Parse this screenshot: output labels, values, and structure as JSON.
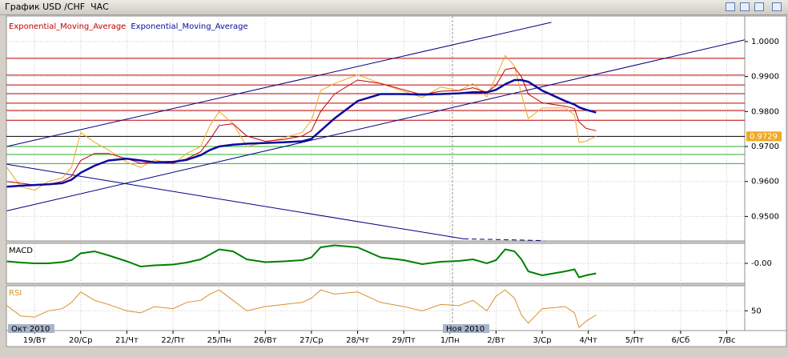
{
  "window": {
    "title": "График USD /CHF  ЧАС"
  },
  "time_scale": {
    "months": [
      "Окт 2010",
      "Ноя 2010"
    ]
  },
  "chart_data": [
    {
      "type": "line",
      "x": [
        -0.6,
        -0.3,
        0,
        0.3,
        0.6,
        0.8,
        1.0,
        1.3,
        1.6,
        2.0,
        2.3,
        2.6,
        3.0,
        3.3,
        3.6,
        3.8,
        4.0,
        4.3,
        4.6,
        5.0,
        5.4,
        5.8,
        6.0,
        6.2,
        6.5,
        7.0,
        7.5,
        8.0,
        8.4,
        8.8,
        9.2,
        9.5,
        9.8,
        10.0,
        10.2,
        10.4,
        10.55,
        10.7,
        11.0,
        11.5,
        11.7,
        11.8,
        11.95,
        12.17
      ],
      "series": [
        {
          "color": "#f0a820",
          "values": [
            0.964,
            0.9585,
            0.9575,
            0.96,
            0.961,
            0.964,
            0.974,
            0.9712,
            0.969,
            0.9655,
            0.964,
            0.9662,
            0.965,
            0.968,
            0.97,
            0.976,
            0.98,
            0.9765,
            0.97,
            0.9712,
            0.9725,
            0.974,
            0.9775,
            0.986,
            0.988,
            0.9905,
            0.988,
            0.9858,
            0.984,
            0.987,
            0.986,
            0.988,
            0.9842,
            0.99,
            0.996,
            0.993,
            0.985,
            0.978,
            0.981,
            0.981,
            0.979,
            0.9712,
            0.9715,
            0.9729
          ]
        },
        {
          "name": "Exponential_Moving_Average",
          "color": "#c00000",
          "values": [
            0.96,
            0.9595,
            0.959,
            0.9592,
            0.96,
            0.9615,
            0.966,
            0.968,
            0.968,
            0.9665,
            0.9652,
            0.9655,
            0.9652,
            0.9665,
            0.9685,
            0.972,
            0.976,
            0.9765,
            0.973,
            0.9715,
            0.972,
            0.973,
            0.9745,
            0.98,
            0.985,
            0.989,
            0.988,
            0.9862,
            0.9848,
            0.9858,
            0.986,
            0.9868,
            0.9855,
            0.9875,
            0.992,
            0.9925,
            0.99,
            0.985,
            0.9825,
            0.9815,
            0.9808,
            0.977,
            0.9752,
            0.9745
          ]
        },
        {
          "name": "Exponential_Moving_Average",
          "color": "#0a0aa0",
          "values": [
            0.9585,
            0.9588,
            0.959,
            0.9592,
            0.9595,
            0.9605,
            0.9625,
            0.9645,
            0.966,
            0.9665,
            0.966,
            0.9655,
            0.9656,
            0.9662,
            0.9675,
            0.969,
            0.97,
            0.9705,
            0.9708,
            0.971,
            0.9712,
            0.9715,
            0.9722,
            0.9745,
            0.978,
            0.983,
            0.985,
            0.985,
            0.9848,
            0.985,
            0.9852,
            0.9855,
            0.9855,
            0.9862,
            0.9878,
            0.989,
            0.989,
            0.9885,
            0.986,
            0.983,
            0.982,
            0.9812,
            0.9805,
            0.9797
          ]
        }
      ],
      "levels": [
        {
          "value": 0.9952,
          "color": "#c00000"
        },
        {
          "value": 0.9904,
          "color": "#c00000"
        },
        {
          "value": 0.9876,
          "color": "#c00000"
        },
        {
          "value": 0.9851,
          "color": "#c00000"
        },
        {
          "value": 0.9824,
          "color": "#c00000"
        },
        {
          "value": 0.9803,
          "color": "#c00000"
        },
        {
          "value": 0.9775,
          "color": "#c00000"
        },
        {
          "value": 0.9729,
          "color": "#000000"
        },
        {
          "value": 0.97,
          "color": "#30b030"
        },
        {
          "value": 0.9677,
          "color": "#30b030"
        },
        {
          "value": 0.9651,
          "color": "#30b030"
        }
      ],
      "trendlines": [
        {
          "x": [
            -0.6,
            11.2
          ],
          "y": [
            0.97,
            1.0055
          ],
          "color": "#000080",
          "dashed": false
        },
        {
          "x": [
            -0.6,
            15.39
          ],
          "y": [
            0.9516,
            1.0005
          ],
          "color": "#000080",
          "dashed": false
        },
        {
          "x": [
            -0.6,
            9.3
          ],
          "y": [
            0.9649,
            0.9436
          ],
          "color": "#000080",
          "dashed": false
        },
        {
          "x": [
            9.3,
            11.04
          ],
          "y": [
            0.9436,
            0.9431
          ],
          "color": "#000080",
          "dashed": true
        }
      ],
      "xlim": [
        -0.61,
        15.39
      ],
      "xticks": [
        {
          "value": 0,
          "label": "19/Вт"
        },
        {
          "value": 1,
          "label": "20/Ср"
        },
        {
          "value": 2,
          "label": "21/Чт"
        },
        {
          "value": 3,
          "label": "22/Пт"
        },
        {
          "value": 4,
          "label": "25/Пн"
        },
        {
          "value": 5,
          "label": "26/Вт"
        },
        {
          "value": 6,
          "label": "27/Ср"
        },
        {
          "value": 7,
          "label": "28/Чт"
        },
        {
          "value": 8,
          "label": "29/Пт"
        },
        {
          "value": 9,
          "label": "1/Пн"
        },
        {
          "value": 10,
          "label": "2/Вт"
        },
        {
          "value": 11,
          "label": "3/Ср"
        },
        {
          "value": 12,
          "label": "4/Чт"
        },
        {
          "value": 13,
          "label": "5/Пт"
        },
        {
          "value": 14,
          "label": "6/Сб"
        },
        {
          "value": 15,
          "label": "7/Вс"
        }
      ],
      "ylim": [
        0.943,
        1.0073
      ],
      "yticks": [
        {
          "value": 0.95,
          "label": "0.9500"
        },
        {
          "value": 0.96,
          "label": "0.9600"
        },
        {
          "value": 0.97,
          "label": "0.9700"
        },
        {
          "value": 0.98,
          "label": "0.9800"
        },
        {
          "value": 0.99,
          "label": "0.9900"
        },
        {
          "value": 1,
          "label": "1.0000"
        }
      ],
      "grid": true
    },
    {
      "type": "line",
      "title": "MACD",
      "series": [
        {
          "color": "#008000",
          "values": [
            0.0005,
            0.0002,
            0,
            0,
            0.0003,
            0.0008,
            0.0025,
            0.003,
            0.002,
            0.0005,
            -0.0008,
            -0.0005,
            -0.0003,
            0.0002,
            0.001,
            0.0022,
            0.0035,
            0.003,
            0.001,
            0.0003,
            0.0005,
            0.0008,
            0.0015,
            0.004,
            0.0045,
            0.004,
            0.0015,
            0.0008,
            -0.0002,
            0.0004,
            0.0006,
            0.001,
            0,
            0.0008,
            0.0035,
            0.003,
            0.001,
            -0.002,
            -0.003,
            -0.002,
            -0.0015,
            -0.0035,
            -0.003,
            -0.0025
          ]
        }
      ],
      "ylim": [
        -0.005,
        0.005
      ],
      "yticks": [
        {
          "value": 0,
          "label": "-0.00"
        }
      ],
      "grid": true
    },
    {
      "type": "line",
      "title": "RSI",
      "series": [
        {
          "color": "#d89030",
          "values": [
            55,
            45,
            44,
            50,
            52,
            58,
            68,
            60,
            56,
            50,
            48,
            54,
            52,
            58,
            60,
            66,
            70,
            60,
            50,
            54,
            56,
            58,
            62,
            70,
            66,
            68,
            58,
            54,
            50,
            56,
            55,
            60,
            50,
            64,
            70,
            62,
            46,
            38,
            52,
            54,
            48,
            34,
            40,
            46
          ]
        }
      ],
      "ylim": [
        31,
        74
      ],
      "yticks": [
        50
      ],
      "grid": true
    }
  ]
}
